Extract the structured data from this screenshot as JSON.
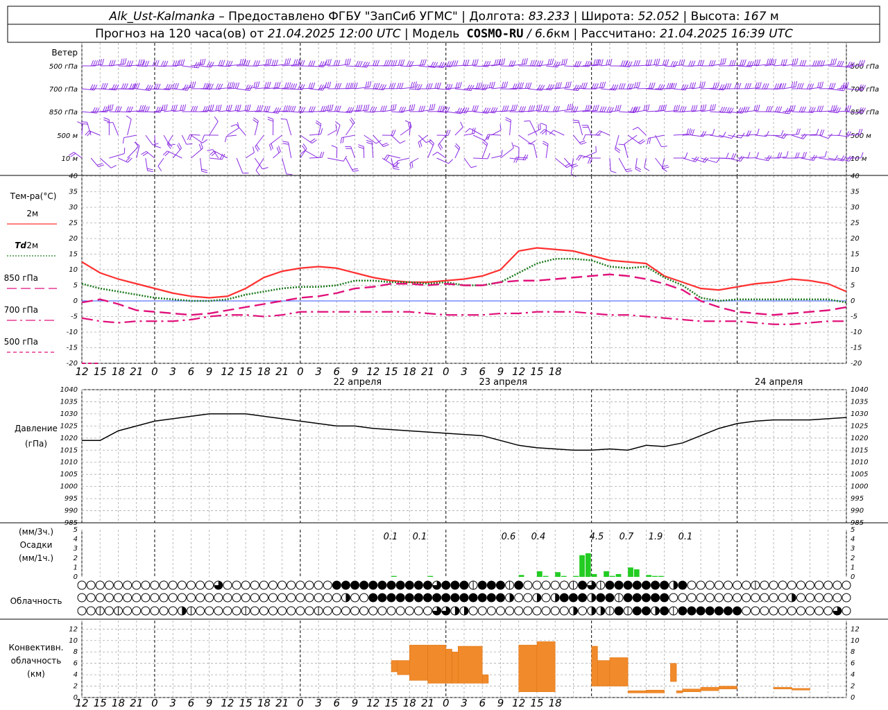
{
  "header": {
    "station": "Alk_Ust-Kalmanka",
    "dash": "–",
    "provider": "Предоставлено ФГБУ \"ЗапСиб УГМС\"",
    "lon_label": "Долгота:",
    "lon_value": "83.233",
    "lat_label": "Широта:",
    "lat_value": "52.052",
    "alt_label": "Высота:",
    "alt_value": "167",
    "alt_unit": "м",
    "forecast_prefix": "Прогноз на 120 часа(ов) от",
    "forecast_date": "21.04.2025 12:00 UTC",
    "model_label": "| Модель",
    "model_name": "COSMO-RU",
    "model_res": "/ 6.6",
    "model_res_unit": "км",
    "calc_label": "| Рассчитано:",
    "calc_date": "21.04.2025 16:39 UTC"
  },
  "x_axis": {
    "hours": [
      "12",
      "15",
      "18",
      "21",
      "0",
      "3",
      "6",
      "9",
      "12",
      "15",
      "18",
      "21",
      "0",
      "3",
      "6",
      "9",
      "12",
      "15",
      "18",
      "21",
      "0",
      "3",
      "6",
      "9",
      "12",
      "15",
      "18"
    ],
    "dates": [
      "22 апреля",
      "23 апреля",
      "24 апреля"
    ]
  },
  "wind_panel": {
    "title": "Ветер",
    "levels": [
      "500 гПа",
      "700 гПа",
      "850 гПа",
      "500 м",
      "10 м"
    ],
    "color": "#8a2be2"
  },
  "temp_panel": {
    "title": "Тем-ра(°C)",
    "legend": [
      {
        "label": "2м",
        "color": "#ff3030",
        "style": "solid"
      },
      {
        "label_bold": "Td",
        "label": "2м",
        "color": "#1e7a1e",
        "style": "dotted"
      },
      {
        "label": "850 гПа",
        "color": "#e0107a",
        "style": "dash"
      },
      {
        "label": "700 гПа",
        "color": "#e0107a",
        "style": "dashdot"
      },
      {
        "label": "500 гПа",
        "color": "#e0107a",
        "style": "shortdash"
      }
    ],
    "ticks": [
      "40",
      "35",
      "30",
      "25",
      "20",
      "15",
      "10",
      "5",
      "0",
      "-5",
      "-10",
      "-15",
      "-20"
    ]
  },
  "pressure_panel": {
    "title": "Давление",
    "unit": "(гПа)",
    "ticks": [
      "1040",
      "1035",
      "1030",
      "1025",
      "1020",
      "1015",
      "1010",
      "1005",
      "1000",
      "995",
      "990",
      "985"
    ]
  },
  "precip_panel": {
    "unit_top": "(мм/3ч.)",
    "title": "Осадки",
    "unit_bottom": "(мм/1ч.)",
    "ticks": [
      "5",
      "4",
      "3",
      "2",
      "1",
      "0"
    ],
    "totals": [
      "0.1",
      "0.1",
      "0.6",
      "0.4",
      "4.5",
      "0.7",
      "1.9",
      "0.1"
    ]
  },
  "cloud_panel": {
    "title": "Облачность"
  },
  "conv_panel": {
    "title1": "Конвективн.",
    "title2": "облачность",
    "unit": "(км)",
    "ticks": [
      "12",
      "10",
      "8",
      "6",
      "4",
      "2",
      "0"
    ]
  },
  "chart_data": [
    {
      "type": "line",
      "title": "Тем-ра(°C)",
      "ylim": [
        -20,
        40
      ],
      "x_hours_from_start": [
        0,
        3,
        6,
        9,
        12,
        15,
        18,
        21,
        24,
        27,
        30,
        33,
        36,
        39,
        42,
        45,
        48,
        51,
        54,
        57,
        60,
        63,
        66,
        69,
        72,
        75,
        78,
        81,
        84,
        87,
        90,
        93,
        96,
        99,
        102,
        105,
        108,
        111,
        114,
        117,
        120,
        123,
        126
      ],
      "series": [
        {
          "name": "2м",
          "values": [
            12.5,
            9,
            7,
            5.5,
            4,
            2.5,
            1.5,
            1,
            1.5,
            4,
            7.5,
            9.5,
            10.5,
            11,
            10.5,
            9,
            7.5,
            6.5,
            6,
            6,
            6.5,
            7,
            8,
            10,
            16,
            17,
            16.5,
            16,
            14.5,
            13,
            12.5,
            12,
            8,
            6,
            4,
            3.5,
            4.5,
            5.5,
            6,
            7,
            6.5,
            5.5,
            3
          ]
        },
        {
          "name": "Td 2м",
          "values": [
            5.5,
            4,
            3,
            2,
            1,
            0.5,
            0,
            0,
            0.5,
            2,
            3,
            4,
            4.5,
            4.5,
            5,
            6.5,
            6.5,
            6,
            6,
            5.5,
            6,
            5,
            5,
            6,
            9,
            12,
            13.5,
            13.5,
            13,
            11,
            10.5,
            11,
            7.5,
            5,
            1,
            0,
            0.5,
            0.5,
            0.5,
            0.5,
            0.5,
            0.5,
            -0.5
          ]
        },
        {
          "name": "850 гПа",
          "values": [
            -0.5,
            0.5,
            -1,
            -3,
            -3.5,
            -4,
            -4.5,
            -4,
            -3,
            -2,
            -1,
            0,
            1,
            1.5,
            2.5,
            4,
            4.5,
            5.5,
            5.5,
            5,
            5.5,
            5,
            5,
            6,
            6.5,
            6.5,
            7,
            7.5,
            8,
            8.5,
            8,
            7,
            5.5,
            3.5,
            0,
            -2,
            -3.5,
            -4,
            -4.5,
            -4,
            -3.5,
            -3,
            -2
          ]
        },
        {
          "name": "700 гПа",
          "values": [
            -5.5,
            -6.5,
            -7,
            -6.5,
            -6.5,
            -6.5,
            -6,
            -5,
            -4.5,
            -4.5,
            -5,
            -4.5,
            -3.5,
            -3.5,
            -3.5,
            -3.5,
            -3.5,
            -3.5,
            -3.5,
            -4,
            -4.5,
            -4.5,
            -4.5,
            -4,
            -4,
            -3.5,
            -3.5,
            -3.5,
            -4,
            -4.5,
            -4.5,
            -5,
            -5.5,
            -6,
            -6.5,
            -6.5,
            -6.5,
            -7,
            -7.5,
            -7.5,
            -7,
            -6.5,
            -6.5
          ]
        },
        {
          "name": "500 гПа",
          "values": [
            -20,
            -20
          ]
        }
      ]
    },
    {
      "type": "line",
      "title": "Давление",
      "ylim": [
        985,
        1040
      ],
      "x_hours_from_start": [
        0,
        3,
        6,
        9,
        12,
        15,
        18,
        21,
        24,
        27,
        30,
        33,
        36,
        39,
        42,
        45,
        48,
        51,
        54,
        57,
        60,
        63,
        66,
        69,
        72,
        75,
        78,
        81,
        84,
        87,
        90,
        93,
        96,
        99,
        102,
        105,
        108,
        111,
        114,
        117,
        120,
        123,
        126
      ],
      "series": [
        {
          "name": "Давление",
          "values": [
            1019,
            1019,
            1023,
            1025,
            1027,
            1028,
            1029,
            1030,
            1030,
            1030,
            1029,
            1028,
            1027,
            1026,
            1025,
            1025,
            1024,
            1023.5,
            1023,
            1022.5,
            1022,
            1021.5,
            1021,
            1019,
            1017,
            1016,
            1015.5,
            1015,
            1015,
            1015.5,
            1015,
            1017,
            1016.5,
            1018,
            1021,
            1024,
            1026,
            1027,
            1027.5,
            1027.5,
            1027.5,
            1028,
            1028.5
          ]
        }
      ]
    },
    {
      "type": "bar",
      "title": "Осадки",
      "ylim": [
        0,
        5
      ],
      "x_hours_from_start": [
        51,
        57,
        72,
        75,
        76,
        78,
        79,
        81,
        82,
        83,
        84,
        86,
        87,
        88,
        90,
        91,
        93,
        94,
        95
      ],
      "values": [
        0.1,
        0.1,
        0.2,
        0.6,
        0.1,
        0.5,
        0.1,
        0.1,
        2.3,
        2.5,
        0.3,
        0.6,
        0.1,
        0.3,
        1.0,
        0.8,
        0.2,
        0.1,
        0.1
      ]
    },
    {
      "type": "bar",
      "title": "Конвективн. облачность",
      "ylim": [
        0,
        13
      ],
      "segments": [
        {
          "x0": 51,
          "x1": 52,
          "bottom": 4.5,
          "top": 6.5
        },
        {
          "x0": 52,
          "x1": 54,
          "bottom": 4,
          "top": 6.5
        },
        {
          "x0": 54,
          "x1": 57,
          "bottom": 3,
          "top": 9.2
        },
        {
          "x0": 57,
          "x1": 60,
          "bottom": 2.5,
          "top": 9.2
        },
        {
          "x0": 60,
          "x1": 61,
          "bottom": 2.5,
          "top": 8.5
        },
        {
          "x0": 61,
          "x1": 62,
          "bottom": 2.5,
          "top": 8
        },
        {
          "x0": 62,
          "x1": 66,
          "bottom": 2.5,
          "top": 9
        },
        {
          "x0": 66,
          "x1": 67,
          "bottom": 2.5,
          "top": 4
        },
        {
          "x0": 72,
          "x1": 75,
          "bottom": 1,
          "top": 9.2
        },
        {
          "x0": 75,
          "x1": 78,
          "bottom": 1,
          "top": 9.8
        },
        {
          "x0": 84,
          "x1": 85,
          "bottom": 2,
          "top": 9
        },
        {
          "x0": 85,
          "x1": 87,
          "bottom": 2,
          "top": 6.5
        },
        {
          "x0": 87,
          "x1": 90,
          "bottom": 2,
          "top": 7
        },
        {
          "x0": 90,
          "x1": 93,
          "bottom": 0.8,
          "top": 1.2
        },
        {
          "x0": 93,
          "x1": 96,
          "bottom": 0.8,
          "top": 1.3
        },
        {
          "x0": 97,
          "x1": 98,
          "bottom": 2.8,
          "top": 6
        },
        {
          "x0": 98,
          "x1": 99,
          "bottom": 0.8,
          "top": 1.2
        },
        {
          "x0": 99,
          "x1": 102,
          "bottom": 1,
          "top": 1.5
        },
        {
          "x0": 102,
          "x1": 105,
          "bottom": 1.2,
          "top": 1.8
        },
        {
          "x0": 105,
          "x1": 108,
          "bottom": 1.5,
          "top": 2
        },
        {
          "x0": 114,
          "x1": 117,
          "bottom": 1.5,
          "top": 1.8
        },
        {
          "x0": 117,
          "x1": 120,
          "bottom": 1.3,
          "top": 1.6
        }
      ]
    }
  ]
}
